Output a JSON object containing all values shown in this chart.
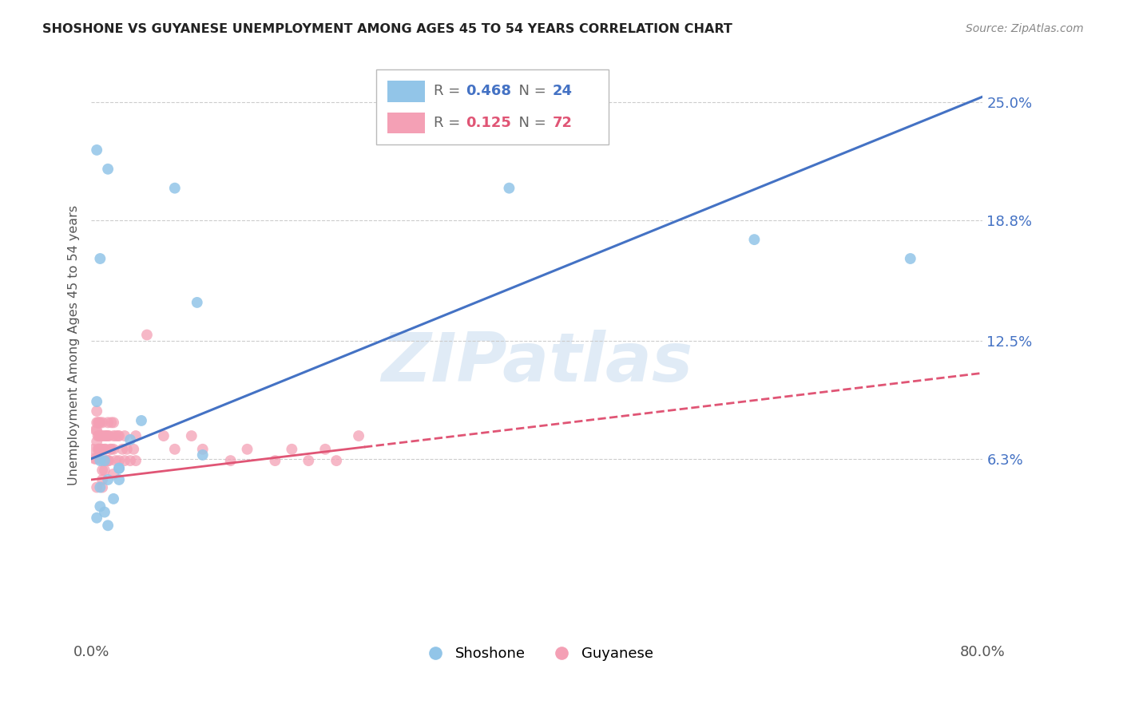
{
  "title": "SHOSHONE VS GUYANESE UNEMPLOYMENT AMONG AGES 45 TO 54 YEARS CORRELATION CHART",
  "source": "Source: ZipAtlas.com",
  "ylabel": "Unemployment Among Ages 45 to 54 years",
  "xlim": [
    0.0,
    0.8
  ],
  "ylim": [
    -0.03,
    0.275
  ],
  "ytick_vals": [
    0.063,
    0.125,
    0.188,
    0.25
  ],
  "ytick_labels": [
    "6.3%",
    "12.5%",
    "18.8%",
    "25.0%"
  ],
  "shoshone_color": "#92C5E8",
  "guyanese_color": "#F4A0B5",
  "shoshone_line_color": "#4472C4",
  "guyanese_line_color": "#E05575",
  "legend_R_shoshone": "0.468",
  "legend_N_shoshone": "24",
  "legend_R_guyanese": "0.125",
  "legend_N_guyanese": "72",
  "watermark": "ZIPatlas",
  "watermark_color": "#C8DCF0",
  "blue_line_x0": 0.0,
  "blue_line_y0": 0.063,
  "blue_line_x1": 0.8,
  "blue_line_y1": 0.253,
  "pink_line_x0": 0.0,
  "pink_line_y0": 0.052,
  "pink_line_solid_x1": 0.245,
  "pink_line_x1": 0.8,
  "pink_line_y1": 0.108,
  "shoshone_x": [
    0.005,
    0.015,
    0.075,
    0.008,
    0.095,
    0.375,
    0.595,
    0.735,
    0.005,
    0.045,
    0.1,
    0.035,
    0.008,
    0.012,
    0.025,
    0.025,
    0.015,
    0.008,
    0.025,
    0.02,
    0.008,
    0.012,
    0.005,
    0.015
  ],
  "shoshone_y": [
    0.225,
    0.215,
    0.205,
    0.168,
    0.145,
    0.205,
    0.178,
    0.168,
    0.093,
    0.083,
    0.065,
    0.073,
    0.062,
    0.062,
    0.058,
    0.058,
    0.052,
    0.048,
    0.052,
    0.042,
    0.038,
    0.035,
    0.032,
    0.028
  ],
  "guyanese_x": [
    0.002,
    0.003,
    0.004,
    0.004,
    0.005,
    0.005,
    0.005,
    0.005,
    0.006,
    0.006,
    0.006,
    0.007,
    0.007,
    0.007,
    0.008,
    0.008,
    0.008,
    0.009,
    0.009,
    0.01,
    0.01,
    0.01,
    0.01,
    0.01,
    0.01,
    0.01,
    0.012,
    0.012,
    0.012,
    0.013,
    0.013,
    0.014,
    0.014,
    0.015,
    0.015,
    0.015,
    0.016,
    0.016,
    0.017,
    0.018,
    0.018,
    0.02,
    0.02,
    0.02,
    0.02,
    0.022,
    0.022,
    0.024,
    0.025,
    0.025,
    0.028,
    0.03,
    0.03,
    0.032,
    0.035,
    0.038,
    0.04,
    0.04,
    0.05,
    0.065,
    0.075,
    0.09,
    0.1,
    0.125,
    0.14,
    0.165,
    0.18,
    0.195,
    0.21,
    0.22,
    0.24,
    0.005
  ],
  "guyanese_y": [
    0.068,
    0.063,
    0.078,
    0.063,
    0.088,
    0.082,
    0.078,
    0.072,
    0.082,
    0.075,
    0.068,
    0.082,
    0.075,
    0.068,
    0.082,
    0.075,
    0.068,
    0.075,
    0.068,
    0.082,
    0.075,
    0.068,
    0.062,
    0.057,
    0.052,
    0.048,
    0.075,
    0.068,
    0.057,
    0.075,
    0.068,
    0.075,
    0.062,
    0.082,
    0.075,
    0.062,
    0.075,
    0.062,
    0.068,
    0.082,
    0.068,
    0.082,
    0.075,
    0.068,
    0.055,
    0.075,
    0.062,
    0.075,
    0.075,
    0.062,
    0.068,
    0.075,
    0.062,
    0.068,
    0.062,
    0.068,
    0.075,
    0.062,
    0.128,
    0.075,
    0.068,
    0.075,
    0.068,
    0.062,
    0.068,
    0.062,
    0.068,
    0.062,
    0.068,
    0.062,
    0.075,
    0.048
  ]
}
